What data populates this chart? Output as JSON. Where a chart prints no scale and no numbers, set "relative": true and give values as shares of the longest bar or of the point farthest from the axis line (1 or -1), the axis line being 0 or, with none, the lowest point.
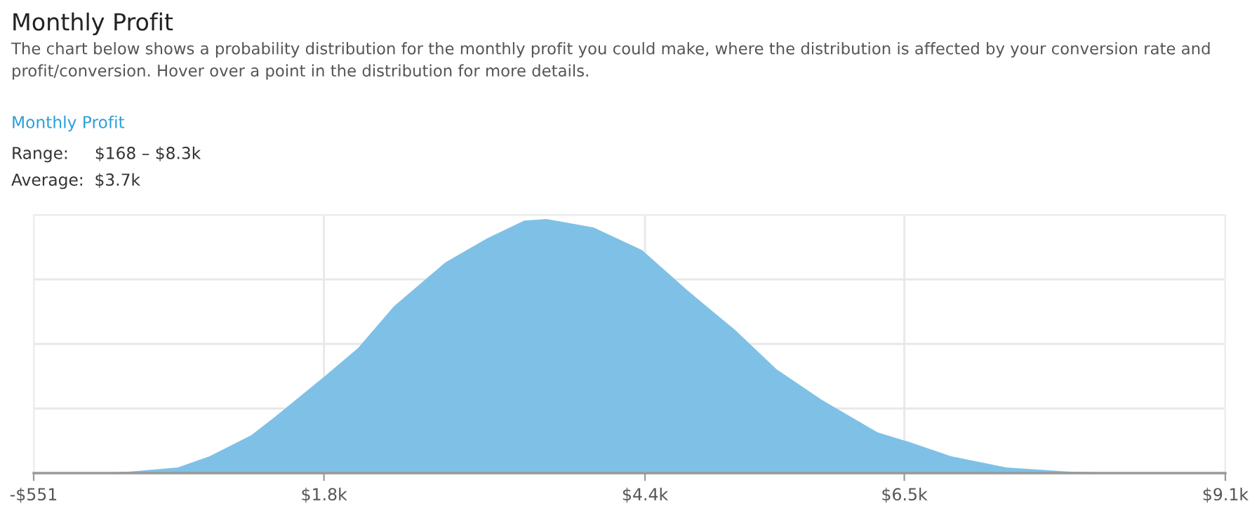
{
  "chart_data": {
    "type": "area",
    "title": "Monthly Profit",
    "subtitle": "The chart below shows a probability distribution for the monthly profit you could make, where the distribution is affected by your conversion rate and profit/conversion. Hover over a point in the distribution for more details.",
    "annotations": [
      "Monthly Profit",
      "Range:     $168 – $8.3k",
      "Average:  $3.7k"
    ],
    "relative": true,
    "x": [
      -24,
      235,
      616,
      874,
      1211,
      1402,
      1806,
      2075,
      2367,
      2782,
      3119,
      3422,
      3602,
      3983,
      4376,
      4746,
      5128,
      5465,
      5835,
      6284,
      6542,
      6879,
      7328,
      7822,
      8282
    ],
    "series": [
      {
        "color": "#7fc1e6",
        "values": [
          0,
          0.006,
          0.022,
          0.066,
          0.149,
          0.221,
          0.381,
          0.492,
          0.657,
          0.829,
          0.923,
          0.994,
          1,
          0.967,
          0.878,
          0.718,
          0.564,
          0.409,
          0.287,
          0.16,
          0.122,
          0.066,
          0.022,
          0.006,
          0
        ]
      }
    ],
    "xlim": [
      -551,
      9100
    ],
    "xticks": [
      {
        "value": -551,
        "label": "-$551"
      },
      {
        "value": 1800,
        "label": "$1.8k"
      },
      {
        "value": 4400,
        "label": "$4.4k"
      },
      {
        "value": 6500,
        "label": "$6.5k"
      },
      {
        "value": 9100,
        "label": "$9.1k"
      }
    ],
    "grid": true,
    "tick_labels": "x"
  }
}
